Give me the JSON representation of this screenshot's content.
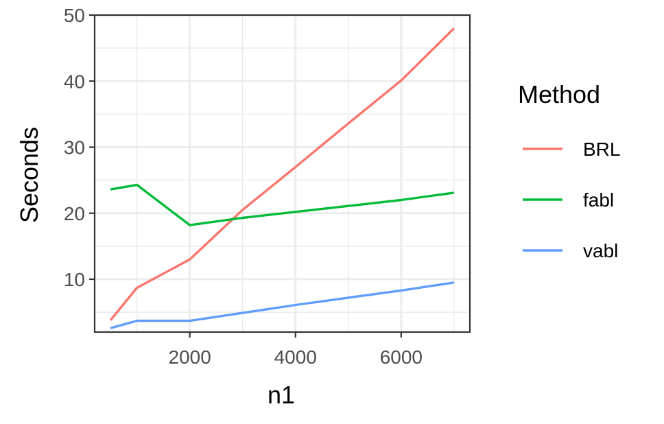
{
  "chart_data": {
    "type": "line",
    "xlabel": "n1",
    "ylabel": "Seconds",
    "xlim": [
      200,
      7300
    ],
    "ylim": [
      2.0,
      50.0
    ],
    "x_ticks": [
      2000,
      4000,
      6000
    ],
    "x_tick_labels": [
      "2000",
      "4000",
      "6000"
    ],
    "y_ticks": [
      10,
      20,
      30,
      40,
      50
    ],
    "y_tick_labels": [
      "10",
      "20",
      "30",
      "40",
      "50"
    ],
    "grid": true,
    "legend": {
      "title": "Method",
      "placement": "right"
    },
    "series": [
      {
        "name": "BRL",
        "color": "#F8766D",
        "x": [
          500,
          1000,
          2000,
          3000,
          4000,
          5000,
          6000,
          7000
        ],
        "y": [
          3.8,
          8.7,
          13.0,
          20.5,
          27.0,
          33.6,
          40.1,
          48.0
        ]
      },
      {
        "name": "fabl",
        "color": "#00BA38",
        "x": [
          500,
          1000,
          2000,
          3000,
          4000,
          5000,
          6000,
          7000
        ],
        "y": [
          23.6,
          24.3,
          18.2,
          19.3,
          20.2,
          21.1,
          22.0,
          23.1
        ]
      },
      {
        "name": "vabl",
        "color": "#619CFF",
        "x": [
          500,
          1000,
          2000,
          3000,
          4000,
          5000,
          6000,
          7000
        ],
        "y": [
          2.6,
          3.7,
          3.7,
          4.9,
          6.1,
          7.2,
          8.3,
          9.5
        ]
      }
    ]
  }
}
